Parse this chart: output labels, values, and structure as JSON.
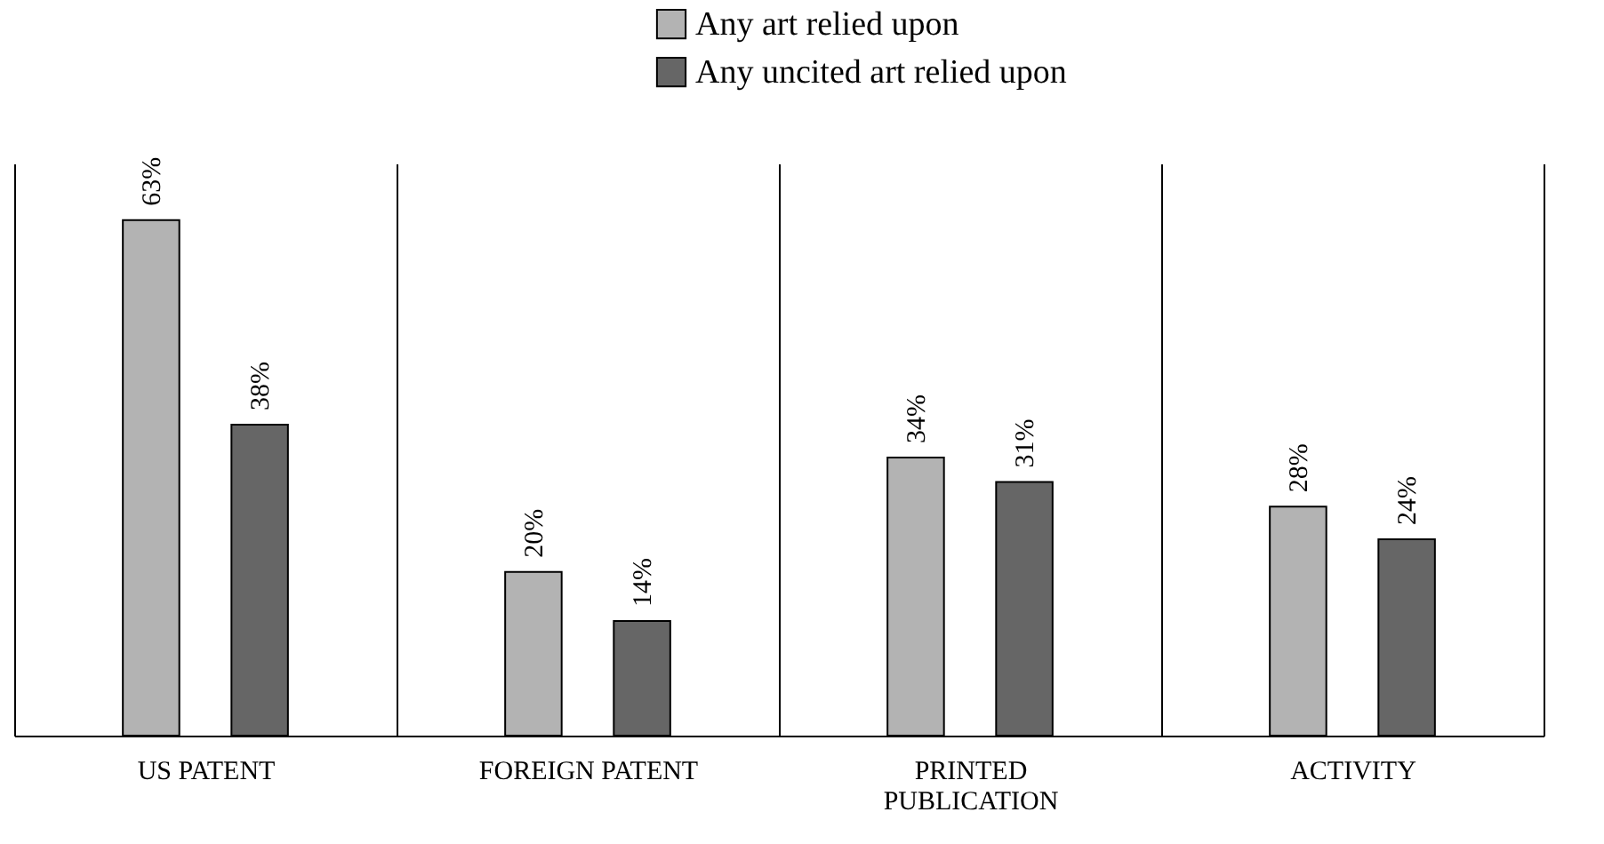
{
  "chart_data": {
    "type": "bar",
    "categories": [
      "US PATENT",
      "FOREIGN PATENT",
      "PRINTED PUBLICATION",
      "ACTIVITY"
    ],
    "series": [
      {
        "name": "Any art relied upon",
        "color": "#b3b3b3",
        "values": [
          63,
          20,
          34,
          28
        ],
        "value_labels": [
          "63%",
          "20%",
          "34%",
          "28%"
        ]
      },
      {
        "name": "Any uncited art relied upon",
        "color": "#666666",
        "values": [
          38,
          14,
          31,
          24
        ],
        "value_labels": [
          "38%",
          "14%",
          "31%",
          "24%"
        ]
      }
    ],
    "grid": "x",
    "legend": "top"
  }
}
